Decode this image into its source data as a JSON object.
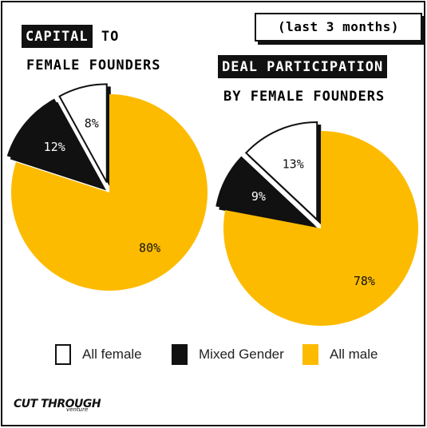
{
  "period_label": "(last 3 months)",
  "chart_data": [
    {
      "type": "pie",
      "title_highlight": "CAPITAL",
      "title_rest_line1": "TO",
      "title_line2": "FEMALE FOUNDERS",
      "labels": [
        "All female",
        "Mixed Gender",
        "All male"
      ],
      "values": [
        8,
        12,
        80
      ],
      "value_labels": [
        "8%",
        "12%",
        "80%"
      ],
      "colors": [
        "#ffffff",
        "#111111",
        "#fdbb00"
      ]
    },
    {
      "type": "pie",
      "title_highlight": "DEAL PARTICIPATION",
      "title_line2": "BY FEMALE FOUNDERS",
      "labels": [
        "All female",
        "Mixed Gender",
        "All male"
      ],
      "values": [
        13,
        9,
        78
      ],
      "value_labels": [
        "13%",
        "9%",
        "78%"
      ],
      "colors": [
        "#ffffff",
        "#111111",
        "#fdbb00"
      ]
    }
  ],
  "legend": [
    {
      "label": "All female",
      "color": "#ffffff"
    },
    {
      "label": "Mixed Gender",
      "color": "#111111"
    },
    {
      "label": "All male",
      "color": "#fdbb00"
    }
  ],
  "logo": {
    "main": "CUT THROUGH",
    "sub": "venture"
  }
}
